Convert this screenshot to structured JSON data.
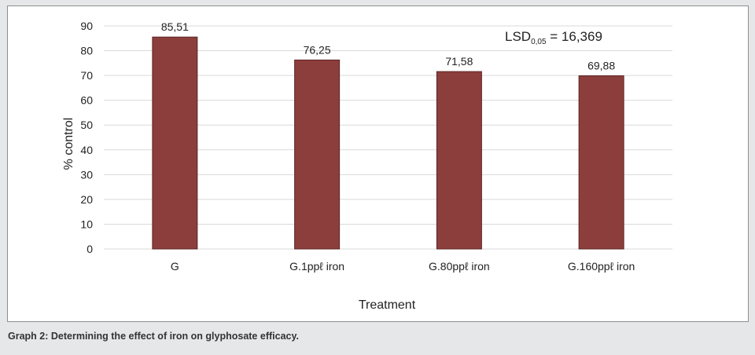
{
  "chart_data": {
    "type": "bar",
    "categories": [
      "G",
      "G.1ppℓ iron",
      "G.80ppℓ iron",
      "G.160ppℓ iron"
    ],
    "values": [
      85.51,
      76.25,
      71.58,
      69.88
    ],
    "data_labels": [
      "85,51",
      "76,25",
      "71,58",
      "69,88"
    ],
    "xlabel": "Treatment",
    "ylabel": "% control",
    "ylim": [
      0,
      90
    ],
    "yticks": [
      0,
      10,
      20,
      30,
      40,
      50,
      60,
      70,
      80,
      90
    ],
    "grid": true,
    "bar_color": "#8b3e3c",
    "annotation": {
      "main": "LSD",
      "subscript": "0,05",
      "suffix": " = 16,369"
    }
  },
  "caption": "Graph 2: Determining the effect of iron on glyphosate efficacy."
}
